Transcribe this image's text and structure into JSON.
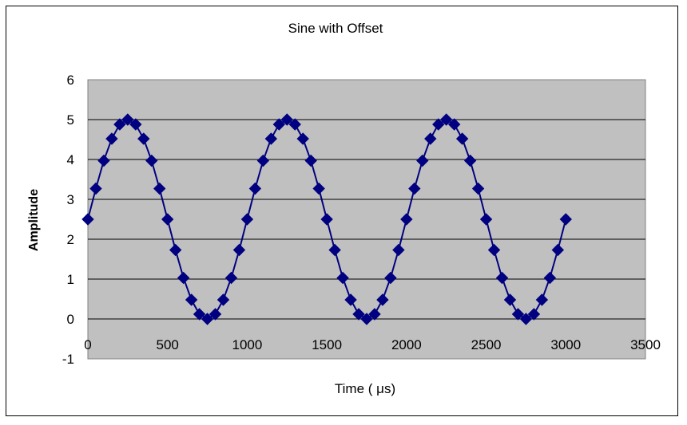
{
  "chart_data": {
    "type": "scatter",
    "title": "Sine with Offset",
    "xlabel": "Time ( μs)",
    "ylabel": "Amplitude",
    "xlim": [
      0,
      3500
    ],
    "ylim": [
      -1,
      6
    ],
    "xticks": [
      0,
      500,
      1000,
      1500,
      2000,
      2500,
      3000,
      3500
    ],
    "yticks": [
      -1,
      0,
      1,
      2,
      3,
      4,
      5,
      6
    ],
    "grid": "horizontal",
    "legend": "none",
    "plot_background": "#c0c0c0",
    "series": [
      {
        "color": "#000080",
        "marker": "diamond",
        "line": true,
        "x": [
          0,
          50,
          100,
          150,
          200,
          250,
          300,
          350,
          400,
          450,
          500,
          550,
          600,
          650,
          700,
          750,
          800,
          850,
          900,
          950,
          1000,
          1050,
          1100,
          1150,
          1200,
          1250,
          1300,
          1350,
          1400,
          1450,
          1500,
          1550,
          1600,
          1650,
          1700,
          1750,
          1800,
          1850,
          1900,
          1950,
          2000,
          2050,
          2100,
          2150,
          2200,
          2250,
          2300,
          2350,
          2400,
          2450,
          2500,
          2550,
          2600,
          2650,
          2700,
          2750,
          2800,
          2850,
          2900,
          2950,
          3000
        ],
        "y": [
          2.5,
          3.27,
          3.97,
          4.52,
          4.88,
          5.0,
          4.88,
          4.52,
          3.97,
          3.27,
          2.5,
          1.73,
          1.03,
          0.48,
          0.12,
          0.0,
          0.12,
          0.48,
          1.03,
          1.73,
          2.5,
          3.27,
          3.97,
          4.52,
          4.88,
          5.0,
          4.88,
          4.52,
          3.97,
          3.27,
          2.5,
          1.73,
          1.03,
          0.48,
          0.12,
          0.0,
          0.12,
          0.48,
          1.03,
          1.73,
          2.5,
          3.27,
          3.97,
          4.52,
          4.88,
          5.0,
          4.88,
          4.52,
          3.97,
          3.27,
          2.5,
          1.73,
          1.03,
          0.48,
          0.12,
          0.0,
          0.12,
          0.48,
          1.03,
          1.73,
          2.5
        ]
      }
    ]
  }
}
